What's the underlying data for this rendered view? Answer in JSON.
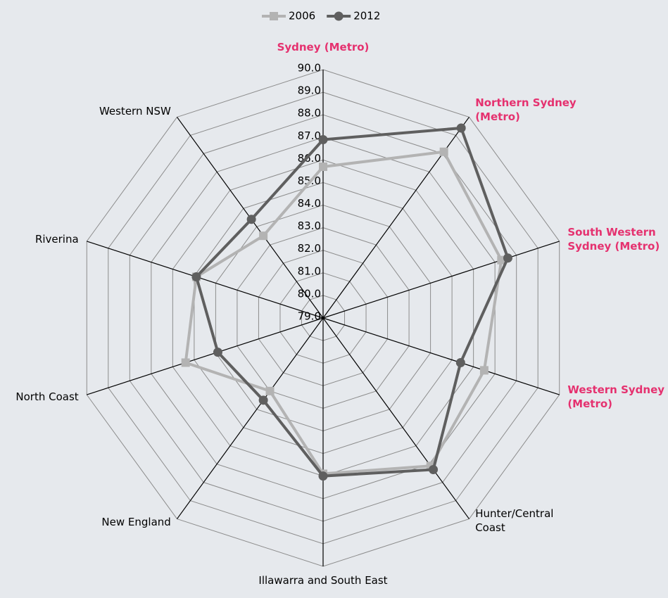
{
  "chart_data": {
    "type": "radar",
    "categories": [
      "Sydney (Metro)",
      "Northern Sydney (Metro)",
      "South Western Sydney (Metro)",
      "Western Sydney (Metro)",
      "Hunter/Central Coast",
      "Illawarra and South East",
      "New England",
      "North Coast",
      "Riverina",
      "Western NSW"
    ],
    "category_colors": [
      "#e5316f",
      "#e5316f",
      "#e5316f",
      "#e5316f",
      "#000000",
      "#000000",
      "#000000",
      "#000000",
      "#000000",
      "#000000"
    ],
    "series": [
      {
        "name": "2006",
        "color": "#b3b3b3",
        "marker": "square",
        "values": [
          85.7,
          88.1,
          87.3,
          86.5,
          87.1,
          85.9,
          83.0,
          85.4,
          84.9,
          83.5
        ]
      },
      {
        "name": "2012",
        "color": "#5f5f5f",
        "marker": "circle",
        "values": [
          86.9,
          89.4,
          87.6,
          85.4,
          87.3,
          86.0,
          83.5,
          83.9,
          84.9,
          84.4
        ]
      }
    ],
    "ylim": [
      79,
      90
    ],
    "yticks": [
      {
        "value": 79,
        "label": "79.0"
      },
      {
        "value": 80,
        "label": "80.0"
      },
      {
        "value": 81,
        "label": "81.0"
      },
      {
        "value": 82,
        "label": "82.0"
      },
      {
        "value": 83,
        "label": "83.0"
      },
      {
        "value": 84,
        "label": "84.0"
      },
      {
        "value": 85,
        "label": "85.0"
      },
      {
        "value": 86,
        "label": "86.0"
      },
      {
        "value": 87,
        "label": "87.0"
      },
      {
        "value": 88,
        "label": "88.0"
      },
      {
        "value": 89,
        "label": "89.0"
      },
      {
        "value": 90,
        "label": "90.0"
      }
    ],
    "grid": true,
    "legend": "top"
  }
}
